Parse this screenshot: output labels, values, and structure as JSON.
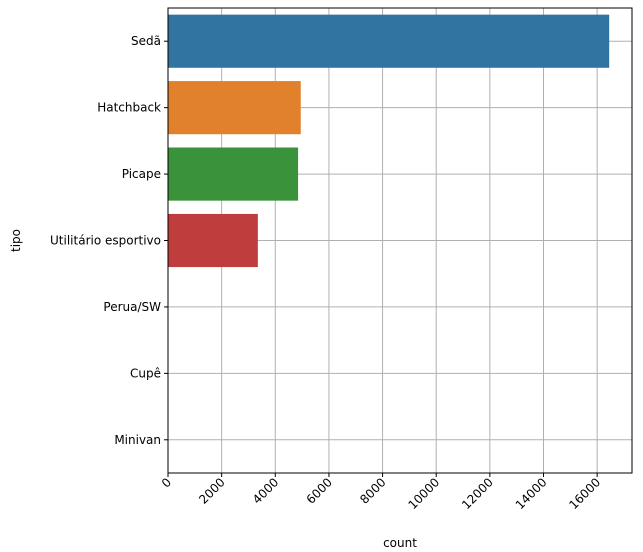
{
  "chart_data": {
    "type": "bar",
    "orientation": "horizontal",
    "categories": [
      "Sedã",
      "Hatchback",
      "Picape",
      "Utilitário esportivo",
      "Perua/SW",
      "Cupê",
      "Minivan"
    ],
    "values": [
      16450,
      4950,
      4850,
      3350,
      0,
      0,
      0
    ],
    "colors": [
      "#3274a1",
      "#e1812c",
      "#3a923a",
      "#c03d3e",
      "#9372b2",
      "#845b53",
      "#d684bd"
    ],
    "xlabel": "count",
    "ylabel": "tipo",
    "xlim": [
      0,
      17300
    ],
    "xticks": [
      0,
      2000,
      4000,
      6000,
      8000,
      10000,
      12000,
      14000,
      16000
    ],
    "xtick_labels": [
      "0",
      "2000",
      "4000",
      "6000",
      "8000",
      "10000",
      "12000",
      "14000",
      "16000"
    ],
    "xtick_rotation": 45,
    "grid": true
  }
}
